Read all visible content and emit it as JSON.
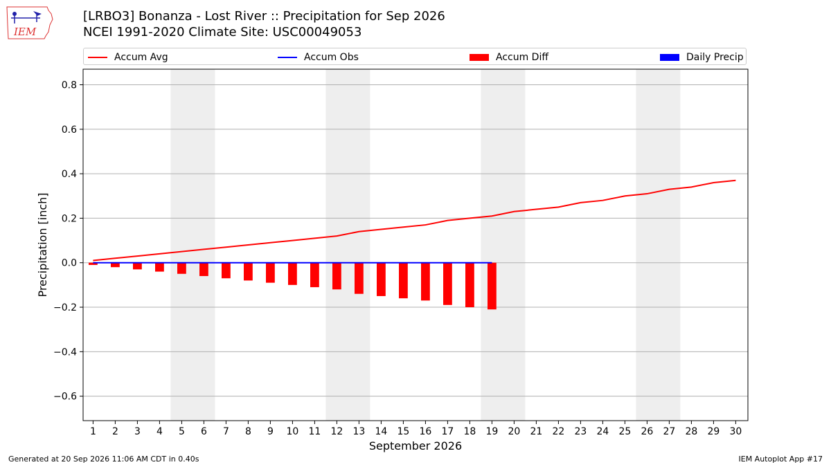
{
  "header": {
    "title": "[LRBO3] Bonanza - Lost River :: Precipitation for Sep 2026",
    "subtitle": "NCEI 1991-2020 Climate Site: USC00049053",
    "logo_text": "IEM"
  },
  "footer": {
    "generated": "Generated at 20 Sep 2026 11:06 AM CDT in 0.40s",
    "app": "IEM Autoplot App #17"
  },
  "colors": {
    "accum_avg": "#ff0000",
    "accum_obs": "#0000ff",
    "accum_diff": "#ff0000",
    "daily_precip": "#0000ff",
    "weekend_band": "#eeeeee",
    "grid": "#b0b0b0"
  },
  "chart_data": {
    "type": "line",
    "xlabel": "September 2026",
    "ylabel": "Precipitation [inch]",
    "ylim": [
      -0.71,
      0.87
    ],
    "xlim": [
      0.55,
      30.55
    ],
    "yticks": [
      -0.6,
      -0.4,
      -0.2,
      0.0,
      0.2,
      0.4,
      0.6,
      0.8
    ],
    "ytick_labels": [
      "−0.6",
      "−0.4",
      "−0.2",
      "0.0",
      "0.2",
      "0.4",
      "0.6",
      "0.8"
    ],
    "x": [
      1,
      2,
      3,
      4,
      5,
      6,
      7,
      8,
      9,
      10,
      11,
      12,
      13,
      14,
      15,
      16,
      17,
      18,
      19,
      20,
      21,
      22,
      23,
      24,
      25,
      26,
      27,
      28,
      29,
      30
    ],
    "grid": "horizontal",
    "legend_position": "top",
    "shaded_days": [
      [
        5,
        6
      ],
      [
        12,
        13
      ],
      [
        19,
        20
      ],
      [
        26,
        27
      ]
    ],
    "series": [
      {
        "name": "Accum Avg",
        "type": "line",
        "x": [
          1,
          2,
          3,
          4,
          5,
          6,
          7,
          8,
          9,
          10,
          11,
          12,
          13,
          14,
          15,
          16,
          17,
          18,
          19,
          20,
          21,
          22,
          23,
          24,
          25,
          26,
          27,
          28,
          29,
          30
        ],
        "values": [
          0.01,
          0.02,
          0.03,
          0.04,
          0.05,
          0.06,
          0.07,
          0.08,
          0.09,
          0.1,
          0.11,
          0.12,
          0.14,
          0.15,
          0.16,
          0.17,
          0.19,
          0.2,
          0.21,
          0.23,
          0.24,
          0.25,
          0.27,
          0.28,
          0.3,
          0.31,
          0.33,
          0.34,
          0.36,
          0.37
        ]
      },
      {
        "name": "Accum Obs",
        "type": "line",
        "x": [
          1,
          2,
          3,
          4,
          5,
          6,
          7,
          8,
          9,
          10,
          11,
          12,
          13,
          14,
          15,
          16,
          17,
          18,
          19
        ],
        "values": [
          0,
          0,
          0,
          0,
          0,
          0,
          0,
          0,
          0,
          0,
          0,
          0,
          0,
          0,
          0,
          0,
          0,
          0,
          0
        ]
      },
      {
        "name": "Accum Diff",
        "type": "bar",
        "x": [
          1,
          2,
          3,
          4,
          5,
          6,
          7,
          8,
          9,
          10,
          11,
          12,
          13,
          14,
          15,
          16,
          17,
          18,
          19
        ],
        "values": [
          -0.01,
          -0.02,
          -0.03,
          -0.04,
          -0.05,
          -0.06,
          -0.07,
          -0.08,
          -0.09,
          -0.1,
          -0.11,
          -0.12,
          -0.14,
          -0.15,
          -0.16,
          -0.17,
          -0.19,
          -0.2,
          -0.21
        ]
      },
      {
        "name": "Daily Precip",
        "type": "bar",
        "x": [
          1,
          2,
          3,
          4,
          5,
          6,
          7,
          8,
          9,
          10,
          11,
          12,
          13,
          14,
          15,
          16,
          17,
          18,
          19
        ],
        "values": [
          0,
          0,
          0,
          0,
          0,
          0,
          0,
          0,
          0,
          0,
          0,
          0,
          0,
          0,
          0,
          0,
          0,
          0,
          0
        ]
      }
    ]
  }
}
